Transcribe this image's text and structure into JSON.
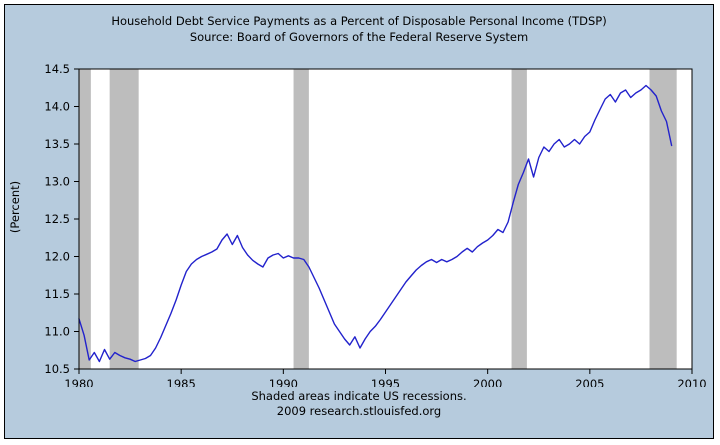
{
  "chart": {
    "title": "Household Debt Service Payments as a Percent of Disposable Personal Income (TDSP)",
    "subtitle": "Source: Board of Governors of the Federal Reserve System",
    "ylabel": "(Percent)",
    "footnote": "Shaded areas indicate US recessions.",
    "credit": "2009 research.stlouisfed.org"
  },
  "chart_data": {
    "type": "line",
    "title": "Household Debt Service Payments as a Percent of Disposable Personal Income (TDSP)",
    "subtitle": "Source: Board of Governors of the Federal Reserve System",
    "xlabel": "",
    "ylabel": "(Percent)",
    "xlim": [
      1980,
      2010
    ],
    "ylim": [
      10.5,
      14.5
    ],
    "xticks": [
      1980,
      1985,
      1990,
      1995,
      2000,
      2005,
      2010
    ],
    "xtick_labels": [
      "1980",
      "1985",
      "1990",
      "1995",
      "2000",
      "2005",
      "2010"
    ],
    "yticks": [
      10.5,
      11.0,
      11.5,
      12.0,
      12.5,
      13.0,
      13.5,
      14.0,
      14.5
    ],
    "ytick_labels": [
      "10.5",
      "11.0",
      "11.5",
      "12.0",
      "12.5",
      "13.0",
      "13.5",
      "14.0",
      "14.5"
    ],
    "grid": false,
    "legend": "none",
    "annotations": [
      "Shaded areas indicate US recessions.",
      "2009 research.stlouisfed.org"
    ],
    "recessions": [
      [
        1980.0,
        1980.58
      ],
      [
        1981.5,
        1982.92
      ],
      [
        1990.5,
        1991.25
      ],
      [
        2001.17,
        2001.92
      ],
      [
        2007.92,
        2009.25
      ]
    ],
    "series": [
      {
        "name": "TDSP",
        "points": [
          [
            1980.0,
            11.17
          ],
          [
            1980.25,
            10.95
          ],
          [
            1980.5,
            10.62
          ],
          [
            1980.75,
            10.72
          ],
          [
            1981.0,
            10.6
          ],
          [
            1981.25,
            10.76
          ],
          [
            1981.5,
            10.63
          ],
          [
            1981.75,
            10.72
          ],
          [
            1982.0,
            10.68
          ],
          [
            1982.25,
            10.65
          ],
          [
            1982.5,
            10.63
          ],
          [
            1982.75,
            10.6
          ],
          [
            1983.0,
            10.62
          ],
          [
            1983.25,
            10.64
          ],
          [
            1983.5,
            10.68
          ],
          [
            1983.75,
            10.78
          ],
          [
            1984.0,
            10.92
          ],
          [
            1984.25,
            11.08
          ],
          [
            1984.5,
            11.24
          ],
          [
            1984.75,
            11.42
          ],
          [
            1985.0,
            11.62
          ],
          [
            1985.25,
            11.8
          ],
          [
            1985.5,
            11.9
          ],
          [
            1985.75,
            11.96
          ],
          [
            1986.0,
            12.0
          ],
          [
            1986.25,
            12.03
          ],
          [
            1986.5,
            12.06
          ],
          [
            1986.75,
            12.1
          ],
          [
            1987.0,
            12.22
          ],
          [
            1987.25,
            12.3
          ],
          [
            1987.5,
            12.16
          ],
          [
            1987.75,
            12.28
          ],
          [
            1988.0,
            12.12
          ],
          [
            1988.25,
            12.02
          ],
          [
            1988.5,
            11.95
          ],
          [
            1988.75,
            11.9
          ],
          [
            1989.0,
            11.86
          ],
          [
            1989.25,
            11.98
          ],
          [
            1989.5,
            12.02
          ],
          [
            1989.75,
            12.04
          ],
          [
            1990.0,
            11.98
          ],
          [
            1990.25,
            12.01
          ],
          [
            1990.5,
            11.98
          ],
          [
            1990.75,
            11.98
          ],
          [
            1991.0,
            11.96
          ],
          [
            1991.25,
            11.86
          ],
          [
            1991.5,
            11.72
          ],
          [
            1991.75,
            11.58
          ],
          [
            1992.0,
            11.42
          ],
          [
            1992.25,
            11.26
          ],
          [
            1992.5,
            11.1
          ],
          [
            1992.75,
            11.0
          ],
          [
            1993.0,
            10.9
          ],
          [
            1993.25,
            10.82
          ],
          [
            1993.5,
            10.93
          ],
          [
            1993.75,
            10.78
          ],
          [
            1994.0,
            10.9
          ],
          [
            1994.25,
            11.0
          ],
          [
            1994.5,
            11.07
          ],
          [
            1994.75,
            11.16
          ],
          [
            1995.0,
            11.26
          ],
          [
            1995.25,
            11.36
          ],
          [
            1995.5,
            11.46
          ],
          [
            1995.75,
            11.56
          ],
          [
            1996.0,
            11.66
          ],
          [
            1996.25,
            11.74
          ],
          [
            1996.5,
            11.82
          ],
          [
            1996.75,
            11.88
          ],
          [
            1997.0,
            11.93
          ],
          [
            1997.25,
            11.96
          ],
          [
            1997.5,
            11.92
          ],
          [
            1997.75,
            11.96
          ],
          [
            1998.0,
            11.93
          ],
          [
            1998.25,
            11.96
          ],
          [
            1998.5,
            12.0
          ],
          [
            1998.75,
            12.06
          ],
          [
            1999.0,
            12.11
          ],
          [
            1999.25,
            12.06
          ],
          [
            1999.5,
            12.13
          ],
          [
            1999.75,
            12.18
          ],
          [
            2000.0,
            12.22
          ],
          [
            2000.25,
            12.28
          ],
          [
            2000.5,
            12.36
          ],
          [
            2000.75,
            12.32
          ],
          [
            2001.0,
            12.46
          ],
          [
            2001.25,
            12.72
          ],
          [
            2001.5,
            12.96
          ],
          [
            2001.75,
            13.12
          ],
          [
            2002.0,
            13.3
          ],
          [
            2002.25,
            13.06
          ],
          [
            2002.5,
            13.32
          ],
          [
            2002.75,
            13.46
          ],
          [
            2003.0,
            13.4
          ],
          [
            2003.25,
            13.5
          ],
          [
            2003.5,
            13.56
          ],
          [
            2003.75,
            13.46
          ],
          [
            2004.0,
            13.5
          ],
          [
            2004.25,
            13.56
          ],
          [
            2004.5,
            13.5
          ],
          [
            2004.75,
            13.6
          ],
          [
            2005.0,
            13.66
          ],
          [
            2005.25,
            13.82
          ],
          [
            2005.5,
            13.96
          ],
          [
            2005.75,
            14.1
          ],
          [
            2006.0,
            14.16
          ],
          [
            2006.25,
            14.06
          ],
          [
            2006.5,
            14.18
          ],
          [
            2006.75,
            14.22
          ],
          [
            2007.0,
            14.12
          ],
          [
            2007.25,
            14.18
          ],
          [
            2007.5,
            14.22
          ],
          [
            2007.75,
            14.28
          ],
          [
            2008.0,
            14.22
          ],
          [
            2008.25,
            14.14
          ],
          [
            2008.5,
            13.94
          ],
          [
            2008.75,
            13.8
          ],
          [
            2009.0,
            13.48
          ]
        ]
      }
    ],
    "colors": {
      "line": "#2222cc",
      "recession": "#bdbdbd",
      "background": "#b6cbdd",
      "plot_background": "#ffffff",
      "axis": "#000000"
    }
  }
}
